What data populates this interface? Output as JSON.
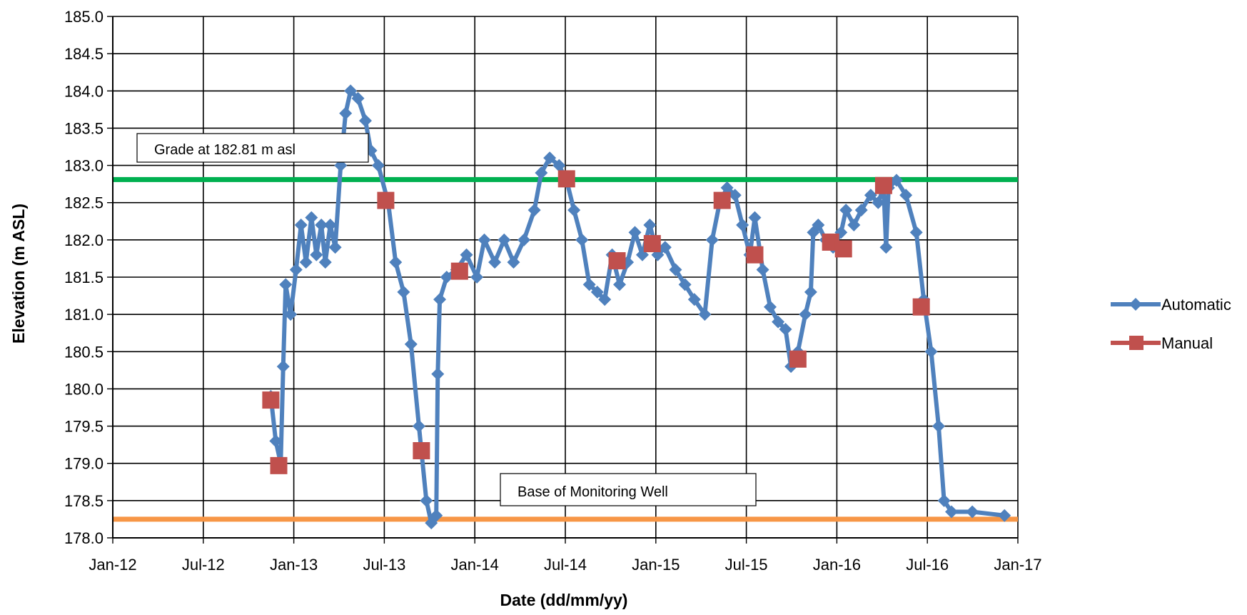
{
  "chart_data": {
    "type": "line",
    "xlabel": "Date (dd/mm/yy)",
    "ylabel": "Elevation (m ASL)",
    "xlim": [
      "2012-01-01",
      "2017-01-01"
    ],
    "ylim": [
      178.0,
      185.0
    ],
    "grid": true,
    "legend_position": "right",
    "x_ticks": [
      "Jan-12",
      "Jul-12",
      "Jan-13",
      "Jul-13",
      "Jan-14",
      "Jul-14",
      "Jan-15",
      "Jul-15",
      "Jan-16",
      "Jul-16",
      "Jan-17"
    ],
    "y_ticks": [
      "178.0",
      "178.5",
      "179.0",
      "179.5",
      "180.0",
      "180.5",
      "181.0",
      "181.5",
      "182.0",
      "182.5",
      "183.0",
      "183.5",
      "184.0",
      "184.5",
      "185.0"
    ],
    "series": [
      {
        "name": "Automatic",
        "color": "#4f81bd",
        "marker": "diamond",
        "points": [
          [
            "2012-11-15",
            179.9
          ],
          [
            "2012-11-25",
            179.3
          ],
          [
            "2012-12-05",
            179.0
          ],
          [
            "2012-12-10",
            180.3
          ],
          [
            "2012-12-15",
            181.4
          ],
          [
            "2012-12-25",
            181.0
          ],
          [
            "2013-01-05",
            181.6
          ],
          [
            "2013-01-15",
            182.2
          ],
          [
            "2013-01-25",
            181.7
          ],
          [
            "2013-02-05",
            182.3
          ],
          [
            "2013-02-15",
            181.8
          ],
          [
            "2013-02-25",
            182.2
          ],
          [
            "2013-03-05",
            181.7
          ],
          [
            "2013-03-15",
            182.2
          ],
          [
            "2013-03-25",
            181.9
          ],
          [
            "2013-04-05",
            183.0
          ],
          [
            "2013-04-15",
            183.7
          ],
          [
            "2013-04-25",
            184.0
          ],
          [
            "2013-05-10",
            183.9
          ],
          [
            "2013-05-25",
            183.6
          ],
          [
            "2013-06-05",
            183.2
          ],
          [
            "2013-06-20",
            183.0
          ],
          [
            "2013-07-10",
            182.5
          ],
          [
            "2013-07-25",
            181.7
          ],
          [
            "2013-08-10",
            181.3
          ],
          [
            "2013-08-25",
            180.6
          ],
          [
            "2013-09-10",
            179.5
          ],
          [
            "2013-09-25",
            178.5
          ],
          [
            "2013-10-05",
            178.2
          ],
          [
            "2013-10-15",
            178.3
          ],
          [
            "2013-10-18",
            180.2
          ],
          [
            "2013-10-22",
            181.2
          ],
          [
            "2013-11-05",
            181.5
          ],
          [
            "2013-11-25",
            181.6
          ],
          [
            "2013-12-15",
            181.8
          ],
          [
            "2014-01-05",
            181.5
          ],
          [
            "2014-01-20",
            182.0
          ],
          [
            "2014-02-10",
            181.7
          ],
          [
            "2014-03-01",
            182.0
          ],
          [
            "2014-03-20",
            181.7
          ],
          [
            "2014-04-10",
            182.0
          ],
          [
            "2014-05-01",
            182.4
          ],
          [
            "2014-05-15",
            182.9
          ],
          [
            "2014-06-01",
            183.1
          ],
          [
            "2014-06-20",
            183.0
          ],
          [
            "2014-07-05",
            182.8
          ],
          [
            "2014-07-20",
            182.4
          ],
          [
            "2014-08-05",
            182.0
          ],
          [
            "2014-08-20",
            181.4
          ],
          [
            "2014-09-05",
            181.3
          ],
          [
            "2014-09-20",
            181.2
          ],
          [
            "2014-10-05",
            181.8
          ],
          [
            "2014-10-20",
            181.4
          ],
          [
            "2014-11-05",
            181.7
          ],
          [
            "2014-11-20",
            182.1
          ],
          [
            "2014-12-05",
            181.8
          ],
          [
            "2014-12-20",
            182.2
          ],
          [
            "2015-01-05",
            181.8
          ],
          [
            "2015-01-20",
            181.9
          ],
          [
            "2015-02-10",
            181.6
          ],
          [
            "2015-03-01",
            181.4
          ],
          [
            "2015-03-20",
            181.2
          ],
          [
            "2015-04-10",
            181.0
          ],
          [
            "2015-04-25",
            182.0
          ],
          [
            "2015-05-10",
            182.5
          ],
          [
            "2015-05-25",
            182.7
          ],
          [
            "2015-06-10",
            182.6
          ],
          [
            "2015-06-25",
            182.2
          ],
          [
            "2015-07-10",
            181.8
          ],
          [
            "2015-07-20",
            182.3
          ],
          [
            "2015-08-05",
            181.6
          ],
          [
            "2015-08-20",
            181.1
          ],
          [
            "2015-09-05",
            180.9
          ],
          [
            "2015-09-20",
            180.8
          ],
          [
            "2015-10-01",
            180.3
          ],
          [
            "2015-10-15",
            180.5
          ],
          [
            "2015-10-30",
            181.0
          ],
          [
            "2015-11-10",
            181.3
          ],
          [
            "2015-11-15",
            182.1
          ],
          [
            "2015-11-25",
            182.2
          ],
          [
            "2015-12-10",
            182.0
          ],
          [
            "2015-12-25",
            181.9
          ],
          [
            "2016-01-10",
            182.1
          ],
          [
            "2016-01-20",
            182.4
          ],
          [
            "2016-02-05",
            182.2
          ],
          [
            "2016-02-20",
            182.4
          ],
          [
            "2016-03-10",
            182.6
          ],
          [
            "2016-03-25",
            182.5
          ],
          [
            "2016-04-05",
            182.7
          ],
          [
            "2016-04-10",
            181.9
          ],
          [
            "2016-04-15",
            182.7
          ],
          [
            "2016-05-01",
            182.8
          ],
          [
            "2016-05-20",
            182.6
          ],
          [
            "2016-06-10",
            182.1
          ],
          [
            "2016-06-25",
            181.2
          ],
          [
            "2016-07-10",
            180.5
          ],
          [
            "2016-07-25",
            179.5
          ],
          [
            "2016-08-05",
            178.5
          ],
          [
            "2016-08-20",
            178.35
          ],
          [
            "2016-10-01",
            178.35
          ],
          [
            "2016-12-05",
            178.3
          ]
        ]
      },
      {
        "name": "Manual",
        "color": "#c0504d",
        "marker": "square",
        "points": [
          [
            "2012-11-15",
            179.85
          ],
          [
            "2012-12-01",
            178.97
          ],
          [
            "2013-07-05",
            182.53
          ],
          [
            "2013-09-15",
            179.17
          ],
          [
            "2013-12-01",
            181.58
          ],
          [
            "2014-07-05",
            182.82
          ],
          [
            "2014-10-15",
            181.72
          ],
          [
            "2014-12-25",
            181.95
          ],
          [
            "2015-05-15",
            182.53
          ],
          [
            "2015-07-20",
            181.8
          ],
          [
            "2015-10-15",
            180.4
          ],
          [
            "2015-12-20",
            181.97
          ],
          [
            "2016-01-15",
            181.88
          ],
          [
            "2016-04-05",
            182.73
          ],
          [
            "2016-06-20",
            181.1
          ]
        ]
      }
    ],
    "annotations": [
      {
        "text": "Grade at 182.81 m asl",
        "y": 182.81,
        "line_color": "#00b050"
      },
      {
        "text": "Base of Monitoring Well",
        "y": 178.25,
        "line_color": "#f79646"
      }
    ]
  }
}
